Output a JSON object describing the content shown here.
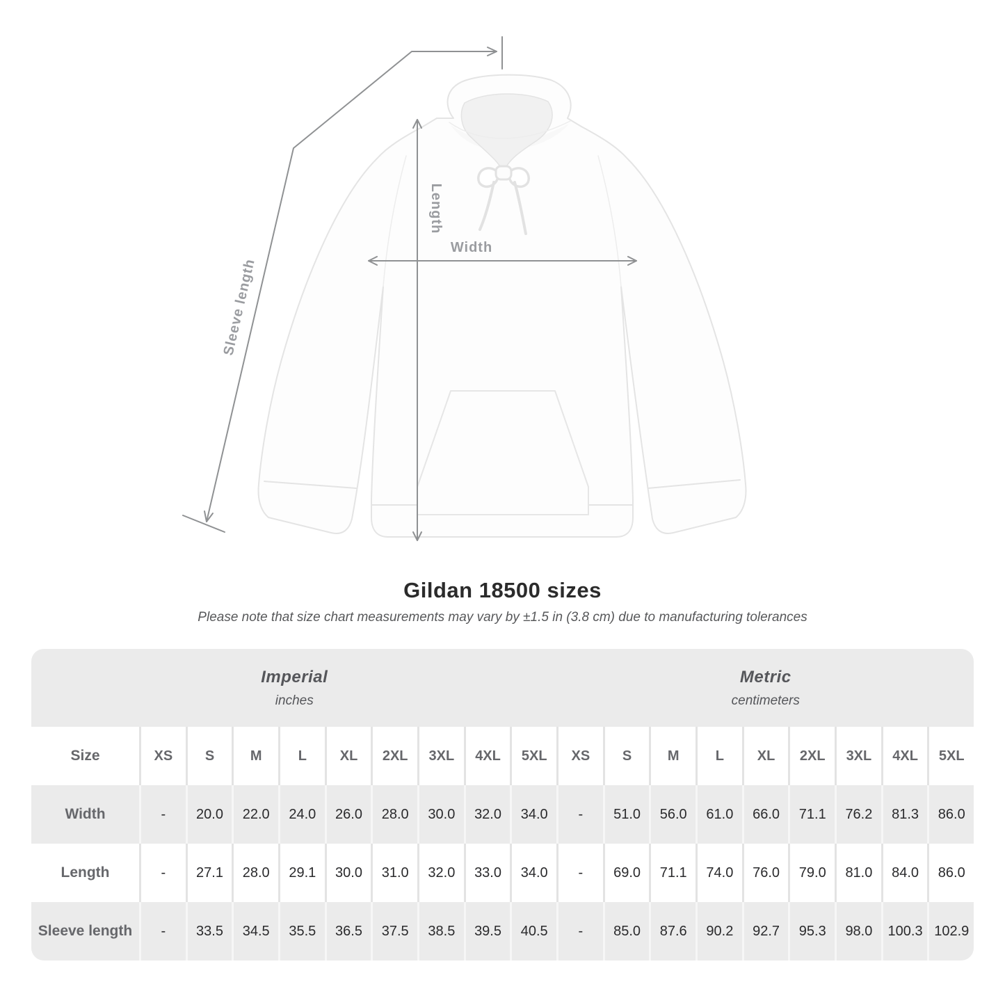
{
  "diagram": {
    "labels": {
      "length": "Length",
      "width": "Width",
      "sleeve_length": "Sleeve length"
    }
  },
  "chart_data": {
    "type": "table",
    "title": "Gildan 18500 sizes",
    "note": "Please note that size chart measurements may vary by ±1.5 in (3.8 cm) due to manufacturing tolerances",
    "unit_groups": [
      {
        "label": "Imperial",
        "sublabel": "inches"
      },
      {
        "label": "Metric",
        "sublabel": "centimeters"
      }
    ],
    "corner_header": "Size",
    "sizes": [
      "XS",
      "S",
      "M",
      "L",
      "XL",
      "2XL",
      "3XL",
      "4XL",
      "5XL"
    ],
    "rows": [
      {
        "label": "Width",
        "imperial": [
          "-",
          "20.0",
          "22.0",
          "24.0",
          "26.0",
          "28.0",
          "30.0",
          "32.0",
          "34.0"
        ],
        "metric": [
          "-",
          "51.0",
          "56.0",
          "61.0",
          "66.0",
          "71.1",
          "76.2",
          "81.3",
          "86.0"
        ]
      },
      {
        "label": "Length",
        "imperial": [
          "-",
          "27.1",
          "28.0",
          "29.1",
          "30.0",
          "31.0",
          "32.0",
          "33.0",
          "34.0"
        ],
        "metric": [
          "-",
          "69.0",
          "71.1",
          "74.0",
          "76.0",
          "79.0",
          "81.0",
          "84.0",
          "86.0"
        ]
      },
      {
        "label": "Sleeve length",
        "imperial": [
          "-",
          "33.5",
          "34.5",
          "35.5",
          "36.5",
          "37.5",
          "38.5",
          "39.5",
          "40.5"
        ],
        "metric": [
          "-",
          "85.0",
          "87.6",
          "90.2",
          "92.7",
          "95.3",
          "98.0",
          "100.3",
          "102.9"
        ]
      }
    ]
  },
  "colors": {
    "container_bg": "#ebebeb",
    "row_white": "#ffffff",
    "sep_on_white": "#e3e3e3",
    "sep_on_gray": "#f6f6f6",
    "heading_text": "#2b2b2b",
    "muted_text": "#66676b",
    "value_text": "#2a2a2c",
    "arrow_gray": "#8f9193",
    "label_gray": "#9a9ca0",
    "hoodie_outline": "#e4e4e4"
  }
}
